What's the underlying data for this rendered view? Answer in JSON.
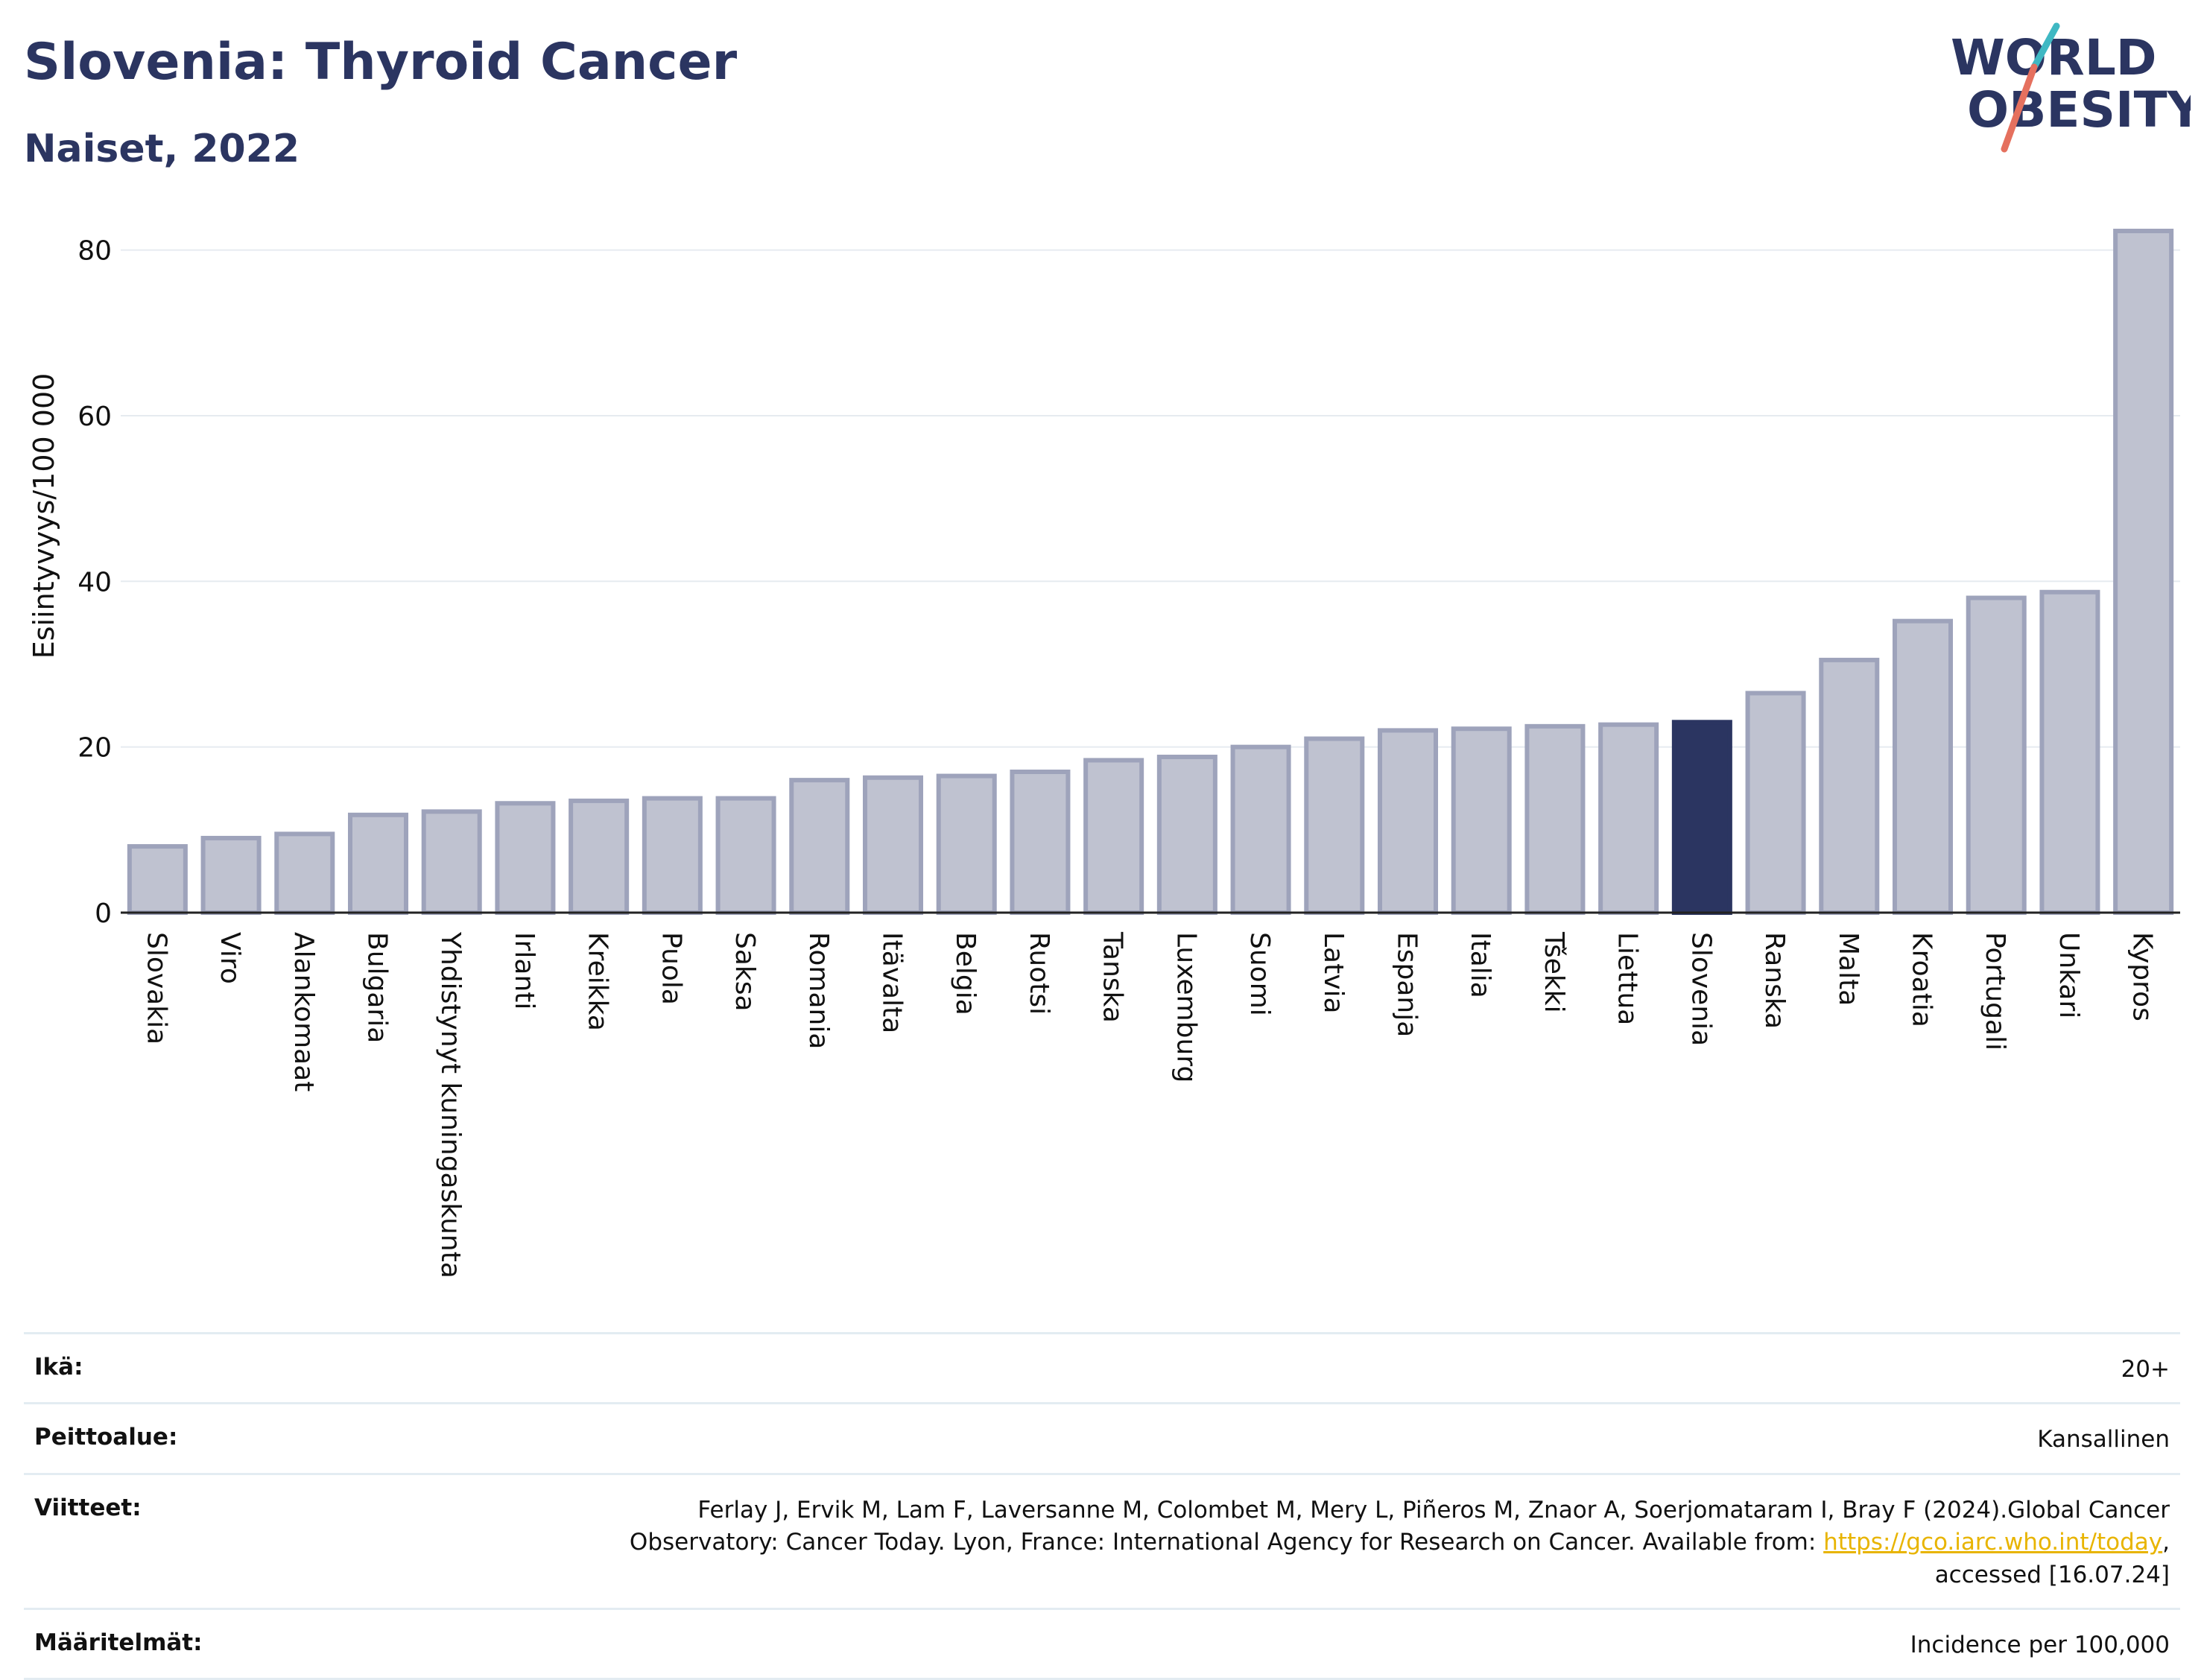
{
  "header": {
    "title": "Slovenia: Thyroid Cancer",
    "subtitle": "Naiset, 2022",
    "logo_line1": "WORLD",
    "logo_line2": "OBESITY"
  },
  "colors": {
    "bar": "#bfc2d0",
    "bar_edge": "#9ea3bb",
    "highlight": "#2b3561",
    "grid": "#e6ebf0",
    "title": "#2b3561"
  },
  "chart_data": {
    "type": "bar",
    "ylabel": "Esiintyvyys/100 000",
    "ylim": [
      0,
      85
    ],
    "yticks": [
      0,
      20,
      40,
      60,
      80
    ],
    "grid": true,
    "highlight": "Slovenia",
    "categories": [
      "Slovakia",
      "Viro",
      "Alankomaat",
      "Bulgaria",
      "Yhdistynyt kuningaskunta",
      "Irlanti",
      "Kreikka",
      "Puola",
      "Saksa",
      "Romania",
      "Itävalta",
      "Belgia",
      "Ruotsi",
      "Tanska",
      "Luxemburg",
      "Suomi",
      "Latvia",
      "Espanja",
      "Italia",
      "Tšekki",
      "Liettua",
      "Slovenia",
      "Ranska",
      "Malta",
      "Kroatia",
      "Portugali",
      "Unkari",
      "Kypros"
    ],
    "values": [
      8.0,
      9.0,
      9.5,
      11.8,
      12.2,
      13.2,
      13.5,
      13.8,
      13.8,
      16.0,
      16.3,
      16.5,
      17.0,
      18.4,
      18.8,
      20.0,
      21.0,
      22.0,
      22.2,
      22.5,
      22.7,
      23.0,
      26.5,
      30.5,
      35.2,
      38.0,
      38.7,
      82.3
    ]
  },
  "meta": {
    "age_label": "Ikä:",
    "age_value": "20+",
    "coverage_label": "Peittoalue:",
    "coverage_value": "Kansallinen",
    "refs_label": "Viitteet:",
    "refs_line1": "Ferlay J, Ervik M, Lam F, Laversanne M, Colombet M, Mery L, Piñeros M, Znaor A, Soerjomataram I, Bray F (2024).Global Cancer",
    "refs_line2_pre": "Observatory: Cancer Today. Lyon, France: International Agency for Research on Cancer. Available from: ",
    "refs_link": "https://gco.iarc.who.int/today",
    "refs_line2_post": ",",
    "refs_line3": "accessed [16.07.24]",
    "defs_label": "Määritelmät:",
    "defs_value": "Incidence per 100,000"
  }
}
